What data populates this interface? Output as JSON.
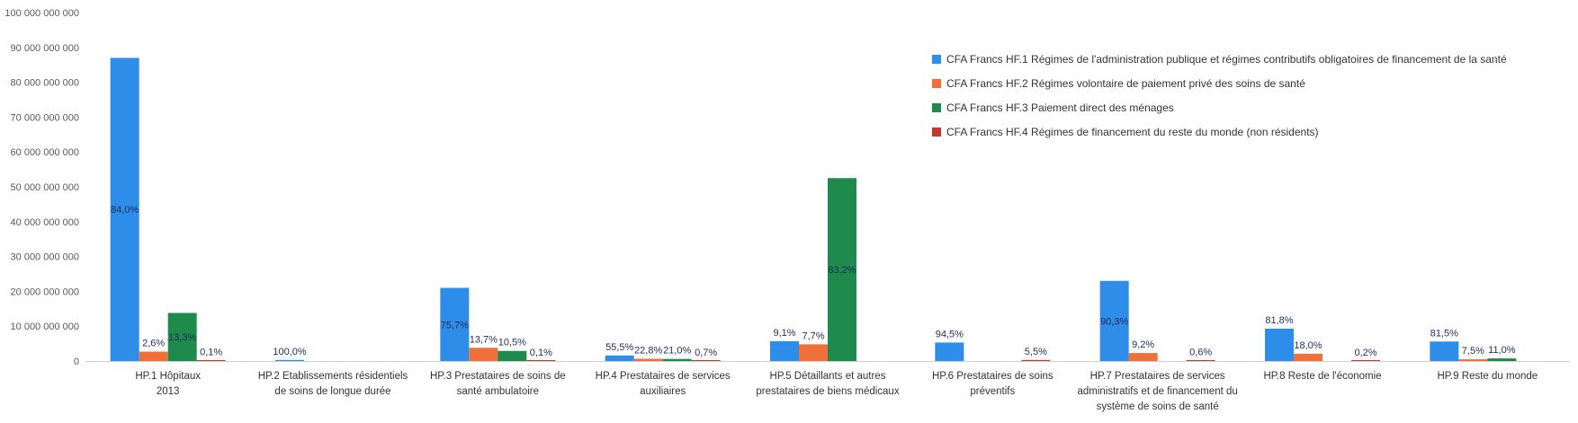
{
  "chart_data": {
    "type": "bar",
    "title": "",
    "xlabel": "",
    "ylabel": "",
    "ylim": [
      0,
      100000000000
    ],
    "yticks": [
      0,
      10000000000,
      20000000000,
      30000000000,
      40000000000,
      50000000000,
      60000000000,
      70000000000,
      80000000000,
      90000000000,
      100000000000
    ],
    "ytick_labels": [
      "0",
      "10 000 000 000",
      "20 000 000 000",
      "30 000 000 000",
      "40 000 000 000",
      "50 000 000 000",
      "60 000 000 000",
      "70 000 000 000",
      "80 000 000 000",
      "90 000 000 000",
      "100 000 000 000"
    ],
    "categories": [
      "HP.1 Hôpitaux\n2013",
      "HP.2 Etablissements résidentiels\nde soins de longue durée",
      "HP.3 Prestataires de soins de\nsanté ambulatoire",
      "HP.4 Prestataires de services\nauxiliaires",
      "HP.5 Détaillants et autres\nprestataires de biens médicaux",
      "HP.6 Prestataires de soins\npréventifs",
      "HP.7 Prestataires de services\nadministratifs et de financement du\nsystème de soins de santé",
      "HP.8 Reste de l'économie",
      "HP.9 Reste du monde"
    ],
    "series": [
      {
        "name": "CFA Francs HF.1 Régimes de l'administration publique et régimes contributifs obligatoires de financement de la santé",
        "color": "#2e8de8",
        "values": [
          87000000000,
          300000000,
          21000000000,
          1600000000,
          5700000000,
          5300000000,
          23000000000,
          9300000000,
          5600000000
        ],
        "labels": [
          "84,0%",
          "100,0%",
          "75,7%",
          "55,5%",
          "9,1%",
          "94,5%",
          "90,3%",
          "81,8%",
          "81,5%"
        ]
      },
      {
        "name": "CFA Francs HF.2 Régimes volontaire de paiement privé des soins de santé",
        "color": "#f0703c",
        "values": [
          2700000000,
          0,
          3800000000,
          650000000,
          4800000000,
          0,
          2300000000,
          2100000000,
          500000000
        ],
        "labels": [
          "2,6%",
          "",
          "13,7%",
          "22,8%",
          "7,7%",
          "",
          "9,2%",
          "18,0%",
          "7,5%"
        ]
      },
      {
        "name": "CFA Francs HF.3 Paiement direct des ménages",
        "color": "#1e8a4c",
        "values": [
          13800000000,
          0,
          2900000000,
          600000000,
          52500000000,
          0,
          0,
          0,
          750000000
        ],
        "labels": [
          "13,3%",
          "",
          "10,5%",
          "21,0%",
          "83,2%",
          "",
          "",
          "",
          "11,0%"
        ]
      },
      {
        "name": "CFA Francs HF.4 Régimes de financement du reste du monde (non résidents)",
        "color": "#c0392b",
        "values": [
          100000000,
          0,
          50000000,
          30000000,
          0,
          300000000,
          150000000,
          30000000,
          0
        ],
        "labels": [
          "0,1%",
          "",
          "0,1%",
          "0,7%",
          "",
          "5,5%",
          "0,6%",
          "0,2%",
          ""
        ]
      }
    ],
    "grid": false,
    "legend_position": "top-right"
  }
}
